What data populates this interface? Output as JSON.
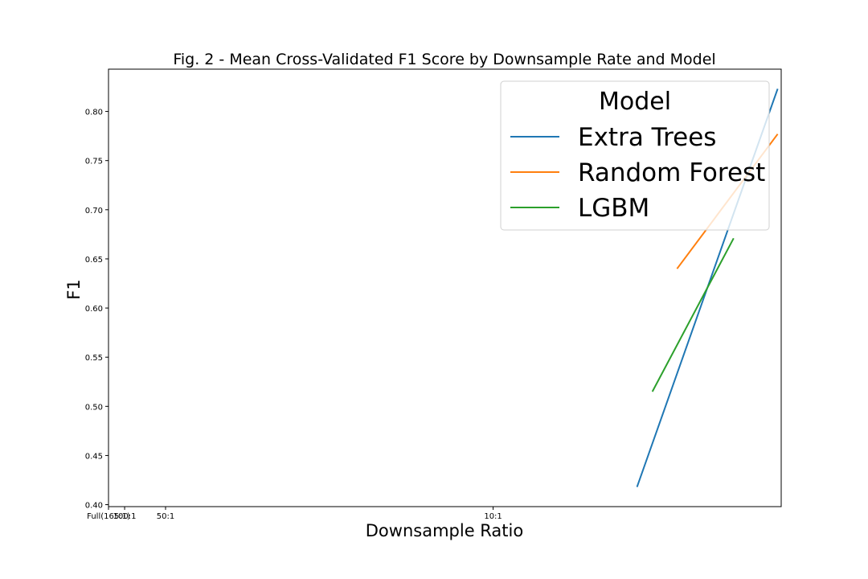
{
  "chart_data": {
    "type": "line",
    "title": "Fig. 2 - Mean Cross-Validated F1 Score by Downsample Rate and Model",
    "xlabel": "Downsample Ratio",
    "ylabel": "F1",
    "x_scale": "reciprocal of downsample ratio",
    "xlim": [
      165,
      5.87
    ],
    "ylim": [
      0.398,
      0.843
    ],
    "x_ticks": [
      {
        "value": 165,
        "label": "Full(165:1)"
      },
      {
        "value": 100,
        "label": "100:1"
      },
      {
        "value": 50,
        "label": "50:1"
      },
      {
        "value": 10,
        "label": "10:1"
      }
    ],
    "y_ticks": [
      {
        "value": 0.4,
        "label": "0.40"
      },
      {
        "value": 0.45,
        "label": "0.45"
      },
      {
        "value": 0.5,
        "label": "0.50"
      },
      {
        "value": 0.55,
        "label": "0.55"
      },
      {
        "value": 0.6,
        "label": "0.60"
      },
      {
        "value": 0.65,
        "label": "0.65"
      },
      {
        "value": 0.7,
        "label": "0.70"
      },
      {
        "value": 0.75,
        "label": "0.75"
      },
      {
        "value": 0.8,
        "label": "0.80"
      }
    ],
    "grid": false,
    "legend": {
      "title": "Model",
      "placement": "top-right"
    },
    "series": [
      {
        "name": "Extra Trees",
        "color": "#1f77b4",
        "points": [
          [
            7.4,
            0.418
          ],
          [
            5.9,
            0.823
          ]
        ]
      },
      {
        "name": "Random Forest",
        "color": "#ff7f0e",
        "points": [
          [
            6.9,
            0.64
          ],
          [
            5.9,
            0.777
          ]
        ]
      },
      {
        "name": "LGBM",
        "color": "#2ca02c",
        "points": [
          [
            7.2,
            0.515
          ],
          [
            6.3,
            0.671
          ]
        ]
      }
    ]
  }
}
